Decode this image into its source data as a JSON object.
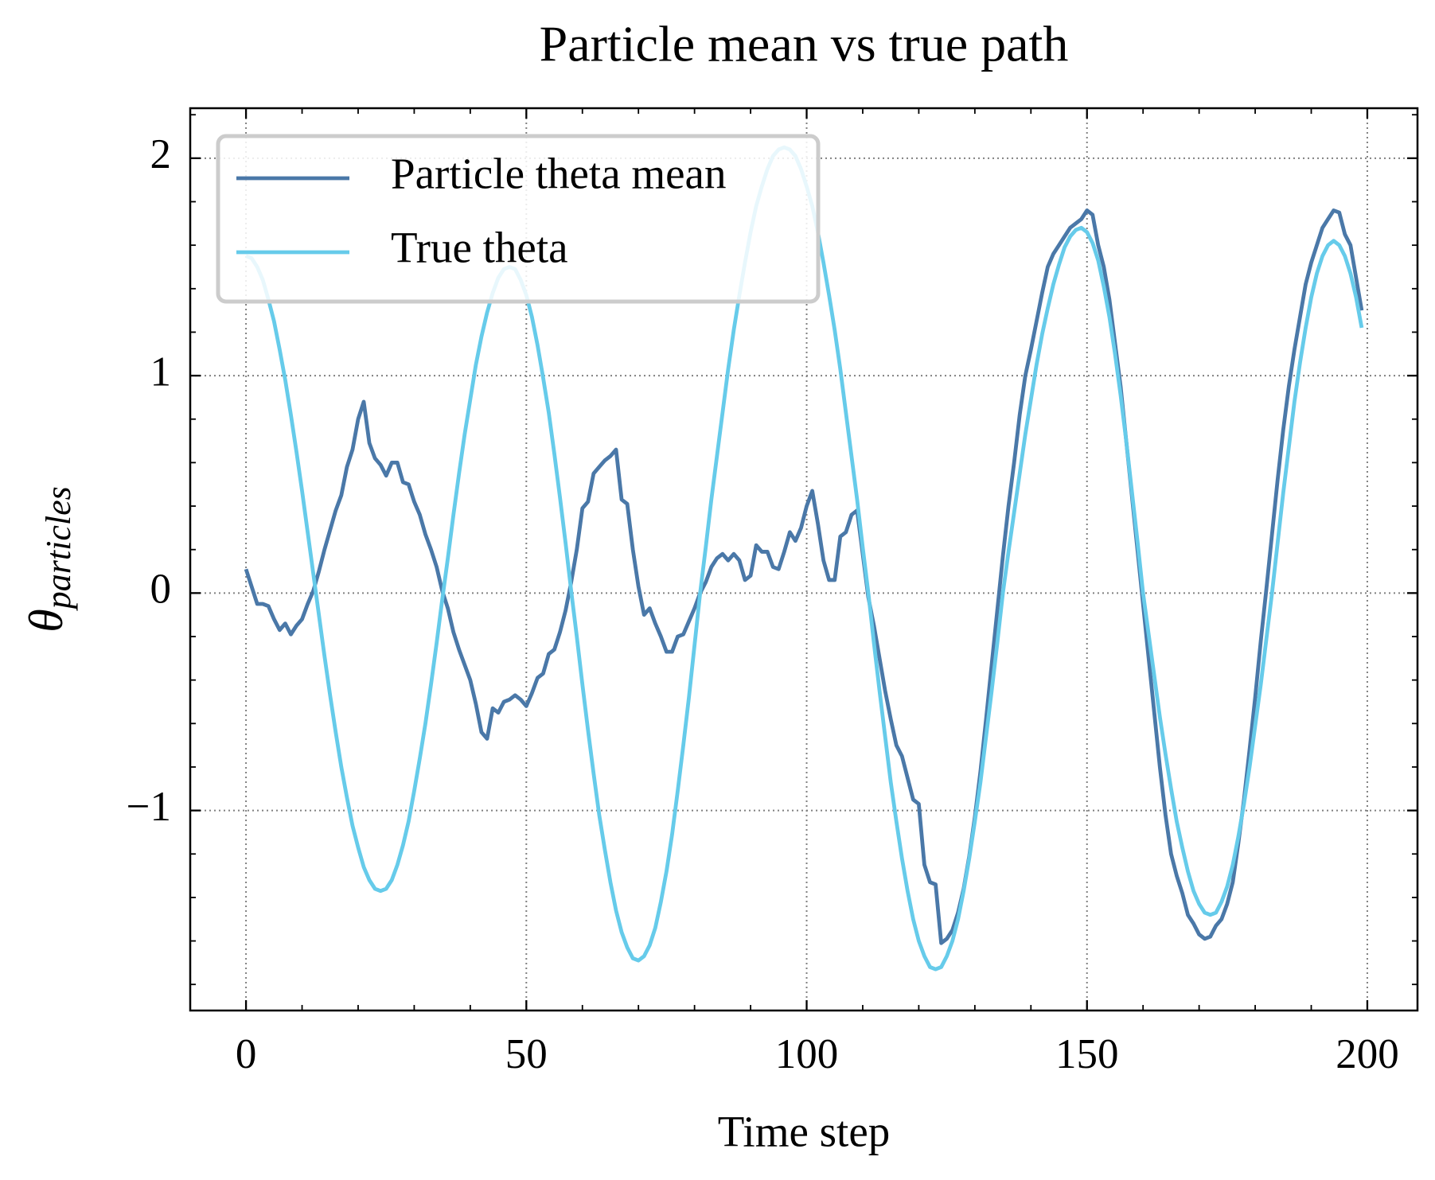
{
  "chart_data": {
    "type": "line",
    "title": "Particle mean vs true path",
    "xlabel": "Time step",
    "ylabel": "θ",
    "ylabel_subscript": "particles",
    "xlim": [
      -9.95,
      208.95
    ],
    "ylim": [
      -1.92,
      2.23
    ],
    "xticks": [
      0,
      50,
      100,
      150,
      200
    ],
    "yticks": [
      {
        "value": -1,
        "label": "−1"
      },
      0,
      1,
      2
    ],
    "xminorticks": [
      10,
      20,
      30,
      40,
      60,
      70,
      80,
      90,
      110,
      120,
      130,
      140,
      160,
      170,
      180,
      190
    ],
    "yminorticks": [
      -1.8,
      -1.6,
      -1.4,
      -1.2,
      -0.8,
      -0.6,
      -0.4,
      -0.2,
      0.2,
      0.4,
      0.6,
      0.8,
      1.2,
      1.4,
      1.6,
      1.8,
      2.2
    ],
    "grid": true,
    "legend": "upper left",
    "x": [
      0,
      1,
      2,
      3,
      4,
      5,
      6,
      7,
      8,
      9,
      10,
      11,
      12,
      13,
      14,
      15,
      16,
      17,
      18,
      19,
      20,
      21,
      22,
      23,
      24,
      25,
      26,
      27,
      28,
      29,
      30,
      31,
      32,
      33,
      34,
      35,
      36,
      37,
      38,
      39,
      40,
      41,
      42,
      43,
      44,
      45,
      46,
      47,
      48,
      49,
      50,
      51,
      52,
      53,
      54,
      55,
      56,
      57,
      58,
      59,
      60,
      61,
      62,
      63,
      64,
      65,
      66,
      67,
      68,
      69,
      70,
      71,
      72,
      73,
      74,
      75,
      76,
      77,
      78,
      79,
      80,
      81,
      82,
      83,
      84,
      85,
      86,
      87,
      88,
      89,
      90,
      91,
      92,
      93,
      94,
      95,
      96,
      97,
      98,
      99,
      100,
      101,
      102,
      103,
      104,
      105,
      106,
      107,
      108,
      109,
      110,
      111,
      112,
      113,
      114,
      115,
      116,
      117,
      118,
      119,
      120,
      121,
      122,
      123,
      124,
      125,
      126,
      127,
      128,
      129,
      130,
      131,
      132,
      133,
      134,
      135,
      136,
      137,
      138,
      139,
      140,
      141,
      142,
      143,
      144,
      145,
      146,
      147,
      148,
      149,
      150,
      151,
      152,
      153,
      154,
      155,
      156,
      157,
      158,
      159,
      160,
      161,
      162,
      163,
      164,
      165,
      166,
      167,
      168,
      169,
      170,
      171,
      172,
      173,
      174,
      175,
      176,
      177,
      178,
      179,
      180,
      181,
      182,
      183,
      184,
      185,
      186,
      187,
      188,
      189,
      190,
      191,
      192,
      193,
      194,
      195,
      196,
      197,
      198,
      199
    ],
    "series": [
      {
        "name": "Particle theta mean",
        "color": "#4a78a8",
        "values": [
          0.11,
          0.03,
          -0.05,
          -0.05,
          -0.06,
          -0.12,
          -0.17,
          -0.14,
          -0.19,
          -0.15,
          -0.12,
          -0.05,
          0.01,
          0.1,
          0.2,
          0.29,
          0.38,
          0.45,
          0.58,
          0.66,
          0.8,
          0.88,
          0.69,
          0.62,
          0.59,
          0.54,
          0.6,
          0.6,
          0.51,
          0.5,
          0.42,
          0.36,
          0.27,
          0.2,
          0.12,
          0.01,
          -0.07,
          -0.18,
          -0.26,
          -0.33,
          -0.4,
          -0.51,
          -0.64,
          -0.67,
          -0.53,
          -0.55,
          -0.5,
          -0.49,
          -0.47,
          -0.49,
          -0.52,
          -0.46,
          -0.39,
          -0.37,
          -0.28,
          -0.26,
          -0.18,
          -0.08,
          0.05,
          0.2,
          0.39,
          0.42,
          0.55,
          0.58,
          0.61,
          0.63,
          0.66,
          0.43,
          0.41,
          0.2,
          0.03,
          -0.1,
          -0.07,
          -0.14,
          -0.2,
          -0.27,
          -0.27,
          -0.2,
          -0.19,
          -0.13,
          -0.07,
          0.0,
          0.05,
          0.12,
          0.16,
          0.18,
          0.15,
          0.18,
          0.15,
          0.06,
          0.08,
          0.22,
          0.19,
          0.19,
          0.12,
          0.11,
          0.19,
          0.28,
          0.24,
          0.3,
          0.4,
          0.47,
          0.32,
          0.15,
          0.06,
          0.06,
          0.26,
          0.28,
          0.36,
          0.38,
          0.18,
          -0.02,
          -0.15,
          -0.3,
          -0.45,
          -0.58,
          -0.7,
          -0.75,
          -0.85,
          -0.95,
          -0.97,
          -1.25,
          -1.33,
          -1.34,
          -1.61,
          -1.59,
          -1.55,
          -1.47,
          -1.36,
          -1.21,
          -1.03,
          -0.82,
          -0.58,
          -0.33,
          -0.08,
          0.17,
          0.4,
          0.6,
          0.82,
          1.0,
          1.12,
          1.25,
          1.38,
          1.5,
          1.56,
          1.6,
          1.64,
          1.68,
          1.7,
          1.72,
          1.76,
          1.74,
          1.6,
          1.5,
          1.35,
          1.15,
          0.95,
          0.7,
          0.45,
          0.2,
          -0.05,
          -0.3,
          -0.55,
          -0.8,
          -1.02,
          -1.2,
          -1.3,
          -1.38,
          -1.48,
          -1.52,
          -1.57,
          -1.59,
          -1.58,
          -1.53,
          -1.5,
          -1.43,
          -1.33,
          -1.15,
          -0.95,
          -0.72,
          -0.48,
          -0.22,
          0.02,
          0.27,
          0.52,
          0.75,
          0.95,
          1.12,
          1.27,
          1.42,
          1.52,
          1.6,
          1.68,
          1.72,
          1.76,
          1.75,
          1.65,
          1.6,
          1.45,
          1.3
        ]
      },
      {
        "name": "True theta",
        "color": "#66cbea",
        "values": [
          1.55,
          1.54,
          1.5,
          1.44,
          1.35,
          1.25,
          1.12,
          0.98,
          0.82,
          0.65,
          0.47,
          0.28,
          0.09,
          -0.1,
          -0.29,
          -0.47,
          -0.64,
          -0.8,
          -0.94,
          -1.07,
          -1.17,
          -1.26,
          -1.32,
          -1.36,
          -1.37,
          -1.36,
          -1.32,
          -1.25,
          -1.16,
          -1.05,
          -0.91,
          -0.76,
          -0.6,
          -0.42,
          -0.23,
          -0.03,
          0.16,
          0.36,
          0.55,
          0.73,
          0.89,
          1.05,
          1.18,
          1.29,
          1.38,
          1.45,
          1.49,
          1.5,
          1.49,
          1.44,
          1.37,
          1.27,
          1.14,
          0.99,
          0.83,
          0.64,
          0.44,
          0.23,
          0.01,
          -0.2,
          -0.42,
          -0.63,
          -0.83,
          -1.02,
          -1.18,
          -1.33,
          -1.46,
          -1.56,
          -1.63,
          -1.68,
          -1.69,
          -1.67,
          -1.62,
          -1.54,
          -1.42,
          -1.28,
          -1.11,
          -0.91,
          -0.7,
          -0.48,
          -0.24,
          0.0,
          0.21,
          0.43,
          0.63,
          0.83,
          1.03,
          1.21,
          1.37,
          1.52,
          1.66,
          1.78,
          1.87,
          1.95,
          2.01,
          2.04,
          2.05,
          2.04,
          2.01,
          1.95,
          1.87,
          1.78,
          1.66,
          1.52,
          1.37,
          1.21,
          1.03,
          0.83,
          0.63,
          0.43,
          0.21,
          0.0,
          -0.23,
          -0.45,
          -0.66,
          -0.87,
          -1.05,
          -1.22,
          -1.37,
          -1.5,
          -1.6,
          -1.67,
          -1.72,
          -1.73,
          -1.72,
          -1.67,
          -1.6,
          -1.5,
          -1.37,
          -1.22,
          -1.05,
          -0.87,
          -0.66,
          -0.45,
          -0.23,
          0.0,
          0.19,
          0.37,
          0.55,
          0.73,
          0.89,
          1.05,
          1.19,
          1.31,
          1.42,
          1.51,
          1.59,
          1.64,
          1.67,
          1.68,
          1.66,
          1.61,
          1.53,
          1.41,
          1.27,
          1.1,
          0.91,
          0.7,
          0.47,
          0.24,
          0.0,
          -0.19,
          -0.38,
          -0.57,
          -0.74,
          -0.9,
          -1.05,
          -1.17,
          -1.28,
          -1.37,
          -1.43,
          -1.47,
          -1.48,
          -1.47,
          -1.42,
          -1.35,
          -1.25,
          -1.12,
          -0.97,
          -0.8,
          -0.61,
          -0.42,
          -0.21,
          0.0,
          0.23,
          0.46,
          0.67,
          0.88,
          1.06,
          1.22,
          1.36,
          1.47,
          1.55,
          1.6,
          1.62,
          1.6,
          1.55,
          1.47,
          1.36,
          1.22
        ]
      }
    ]
  }
}
